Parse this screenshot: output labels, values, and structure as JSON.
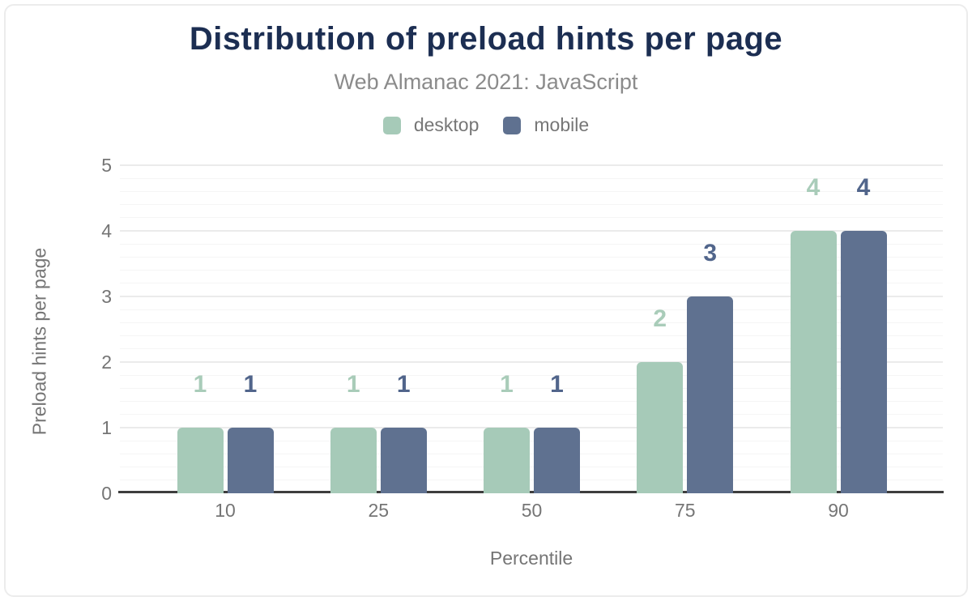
{
  "header": {
    "title": "Distribution of preload hints per page",
    "subtitle": "Web Almanac 2021: JavaScript"
  },
  "legend": [
    {
      "label": "desktop",
      "color": "#a6cab8"
    },
    {
      "label": "mobile",
      "color": "#5f7190"
    }
  ],
  "colors": {
    "title_navy": "#1c2e52",
    "subtitle_gray": "#8b8b8b",
    "axis_text_gray": "#757575",
    "axis_line_dark": "#3d3d3d",
    "gridline_major": "#ebebeb",
    "gridline_minor": "#f5f5f5",
    "desktop_bar": "#a6cab8",
    "mobile_bar": "#5f7190",
    "desktop_value_label": "#a9ccb9",
    "mobile_value_label": "#51658b"
  },
  "chart_data": {
    "type": "bar",
    "title": "Distribution of preload hints per page",
    "subtitle": "Web Almanac 2021: JavaScript",
    "categories": [
      "10",
      "25",
      "50",
      "75",
      "90"
    ],
    "series": [
      {
        "name": "desktop",
        "color": "#a6cab8",
        "label_color": "#a9ccb9",
        "values": [
          1,
          1,
          1,
          2,
          4
        ]
      },
      {
        "name": "mobile",
        "color": "#5f7190",
        "label_color": "#51658b",
        "values": [
          1,
          1,
          1,
          3,
          4
        ]
      }
    ],
    "xlabel": "Percentile",
    "ylabel": "Preload hints per page",
    "ylim": [
      0,
      5
    ],
    "y_ticks": [
      0,
      1,
      2,
      3,
      4,
      5
    ],
    "y_minor_step": 0.2,
    "grid": true,
    "data_labels": true,
    "legend_position": "top"
  }
}
